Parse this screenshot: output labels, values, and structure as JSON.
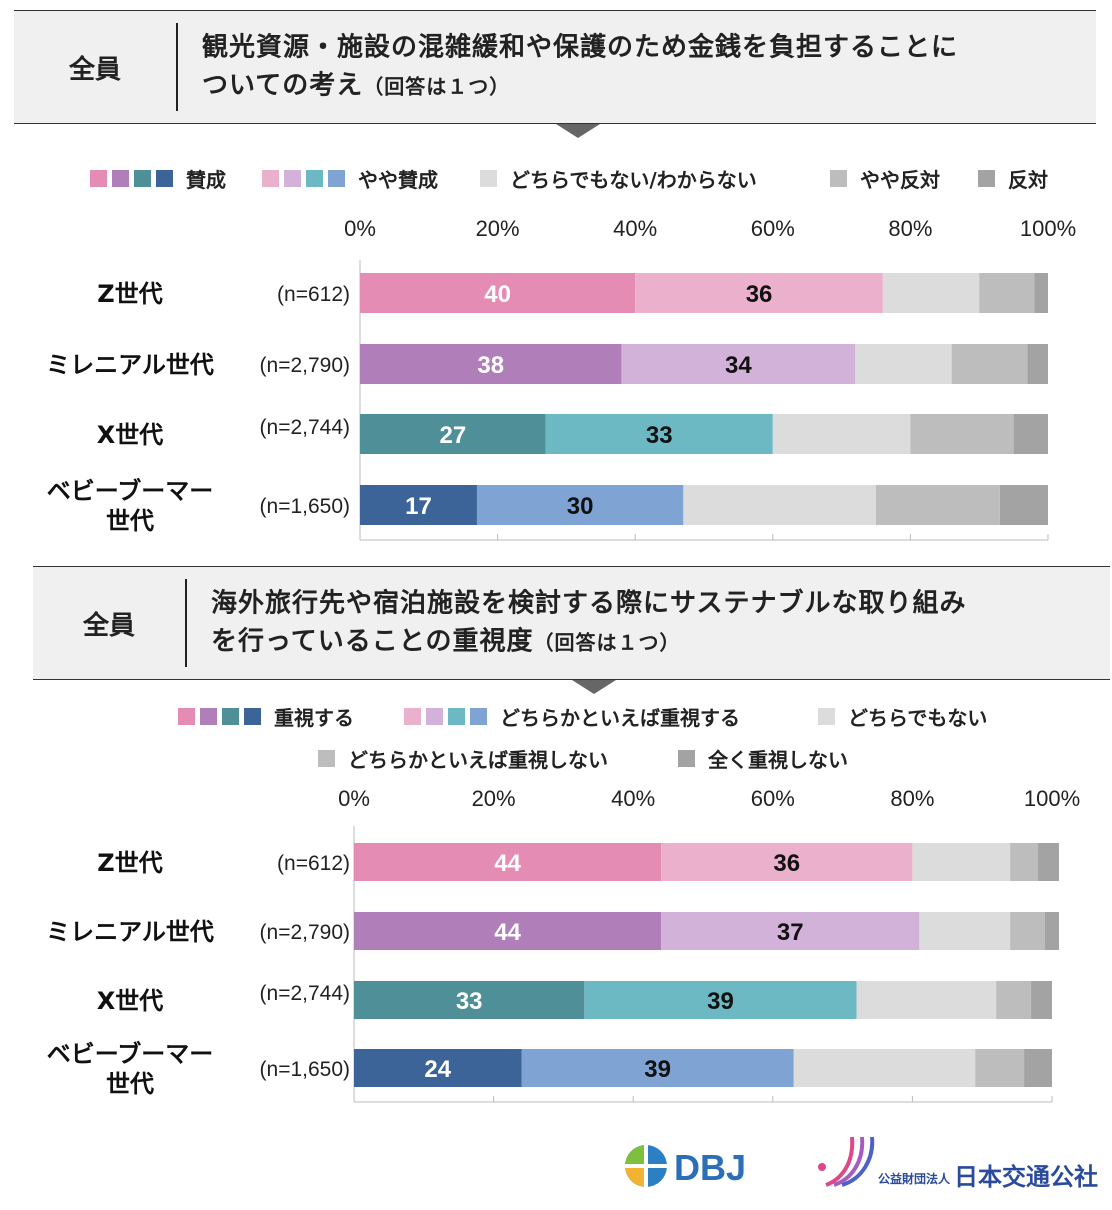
{
  "logos": {
    "dbj": "DBJ",
    "jtb_small": "公益財団法人",
    "jtb_large": "日本交通公社"
  },
  "chart_data": [
    {
      "type": "bar",
      "orientation": "horizontal-stacked-100",
      "tag": "全員",
      "title": "観光資源・施設の混雑緩和や保護のため金銭を負担することについての考え",
      "title_lines": [
        "観光資源・施設の混雑緩和や保護のため金銭を負担することに",
        "ついての考え"
      ],
      "subtitle": "（回答は１つ）",
      "legend": [
        "賛成",
        "やや賛成",
        "どちらでもない/わからない",
        "やや反対",
        "反対"
      ],
      "ticks": [
        "0%",
        "20%",
        "40%",
        "60%",
        "80%",
        "100%"
      ],
      "xlim": [
        0,
        100
      ],
      "grid": false,
      "categories": [
        "Z世代",
        "ミレニアル世代",
        "X世代",
        "ベビーブーマー世代"
      ],
      "category_lines": [
        [
          "Z世代"
        ],
        [
          "ミレニアル世代"
        ],
        [
          "X世代"
        ],
        [
          "ベビーブーマー",
          "世代"
        ]
      ],
      "sample_sizes": [
        "(n=612)",
        "(n=2,790)",
        "(n=2,744)",
        "(n=1,650)"
      ],
      "series": [
        {
          "name": "賛成",
          "values": [
            40,
            38,
            27,
            17
          ]
        },
        {
          "name": "やや賛成",
          "values": [
            36,
            34,
            33,
            30
          ]
        },
        {
          "name": "どちらでもない/わからない",
          "values": [
            14,
            14,
            20,
            28
          ]
        },
        {
          "name": "やや反対",
          "values": [
            8,
            11,
            15,
            18
          ]
        },
        {
          "name": "反対",
          "values": [
            2,
            3,
            5,
            7
          ]
        }
      ],
      "data_labels": [
        [
          "40",
          "36"
        ],
        [
          "38",
          "34"
        ],
        [
          "27",
          "33"
        ],
        [
          "17",
          "30"
        ]
      ]
    },
    {
      "type": "bar",
      "orientation": "horizontal-stacked-100",
      "tag": "全員",
      "title": "海外旅行先や宿泊施設を検討する際にサステナブルな取り組みを行っていることの重視度",
      "title_lines": [
        "海外旅行先や宿泊施設を検討する際にサステナブルな取り組み",
        "を行っていることの重視度"
      ],
      "subtitle": "（回答は１つ）",
      "legend": [
        "重視する",
        "どちらかといえば重視する",
        "どちらでもない",
        "どちらかといえば重視しない",
        "全く重視しない"
      ],
      "ticks": [
        "0%",
        "20%",
        "40%",
        "60%",
        "80%",
        "100%"
      ],
      "xlim": [
        0,
        100
      ],
      "grid": false,
      "categories": [
        "Z世代",
        "ミレニアル世代",
        "X世代",
        "ベビーブーマー世代"
      ],
      "category_lines": [
        [
          "Z世代"
        ],
        [
          "ミレニアル世代"
        ],
        [
          "X世代"
        ],
        [
          "ベビーブーマー",
          "世代"
        ]
      ],
      "sample_sizes": [
        "(n=612)",
        "(n=2,790)",
        "(n=2,744)",
        "(n=1,650)"
      ],
      "series": [
        {
          "name": "重視する",
          "values": [
            44,
            44,
            33,
            24
          ]
        },
        {
          "name": "どちらかといえば重視する",
          "values": [
            36,
            37,
            39,
            39
          ]
        },
        {
          "name": "どちらでもない",
          "values": [
            14,
            13,
            20,
            26
          ]
        },
        {
          "name": "どちらかといえば重視しない",
          "values": [
            4,
            5,
            5,
            7
          ]
        },
        {
          "name": "全く重視しない",
          "values": [
            3,
            2,
            3,
            4
          ]
        }
      ],
      "data_labels": [
        [
          "44",
          "36"
        ],
        [
          "44",
          "37"
        ],
        [
          "33",
          "39"
        ],
        [
          "24",
          "39"
        ]
      ]
    }
  ],
  "colors": {
    "generations": [
      {
        "strong": "#e58cb4",
        "mild": "#ebb0cc"
      },
      {
        "strong": "#b07fb9",
        "mild": "#d2b2d8"
      },
      {
        "strong": "#4f8f98",
        "mild": "#6cb9c4"
      },
      {
        "strong": "#3c6498",
        "mild": "#7fa3d2"
      }
    ],
    "neutral": "#dcdcdc",
    "mild_negative": "#bdbdbd",
    "negative": "#a3a3a3",
    "label_light": "#ffffff",
    "label_dark": "#111111"
  }
}
